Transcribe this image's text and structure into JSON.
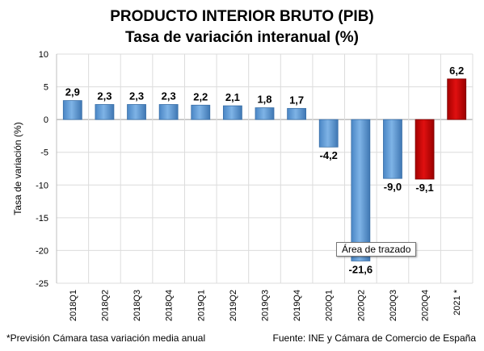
{
  "chart_data": {
    "type": "bar",
    "title": "PRODUCTO INTERIOR BRUTO (PIB)",
    "subtitle": "Tasa de variación interanual (%)",
    "ylabel": "Tasa de variación (%)",
    "xlabel": "",
    "ylim": [
      -25,
      10
    ],
    "yticks": [
      10,
      5,
      0,
      -5,
      -10,
      -15,
      -20,
      -25
    ],
    "grid": true,
    "categories": [
      "2018Q1",
      "2018Q2",
      "2018Q3",
      "2018Q4",
      "2019Q1",
      "2019Q2",
      "2019Q3",
      "2019Q4",
      "2020Q1",
      "2020Q2",
      "2020Q3",
      "2020Q4",
      "2021 *"
    ],
    "values": [
      2.9,
      2.3,
      2.3,
      2.3,
      2.2,
      2.1,
      1.8,
      1.7,
      -4.2,
      -21.6,
      -9.0,
      -9.1,
      6.2
    ],
    "data_labels": [
      "2,9",
      "2,3",
      "2,3",
      "2,3",
      "2,2",
      "2,1",
      "1,8",
      "1,7",
      "-4,2",
      "-21,6",
      "-9,0",
      "-9,1",
      "6,2"
    ],
    "bar_colors": [
      "#5b9bd5",
      "#5b9bd5",
      "#5b9bd5",
      "#5b9bd5",
      "#5b9bd5",
      "#5b9bd5",
      "#5b9bd5",
      "#5b9bd5",
      "#5b9bd5",
      "#5b9bd5",
      "#5b9bd5",
      "#c00000",
      "#c00000"
    ]
  },
  "footnote": "*Previsión Cámara tasa variación media anual",
  "source": "Fuente: INE y Cámara de Comercio de España",
  "tooltip": "Área de trazado"
}
